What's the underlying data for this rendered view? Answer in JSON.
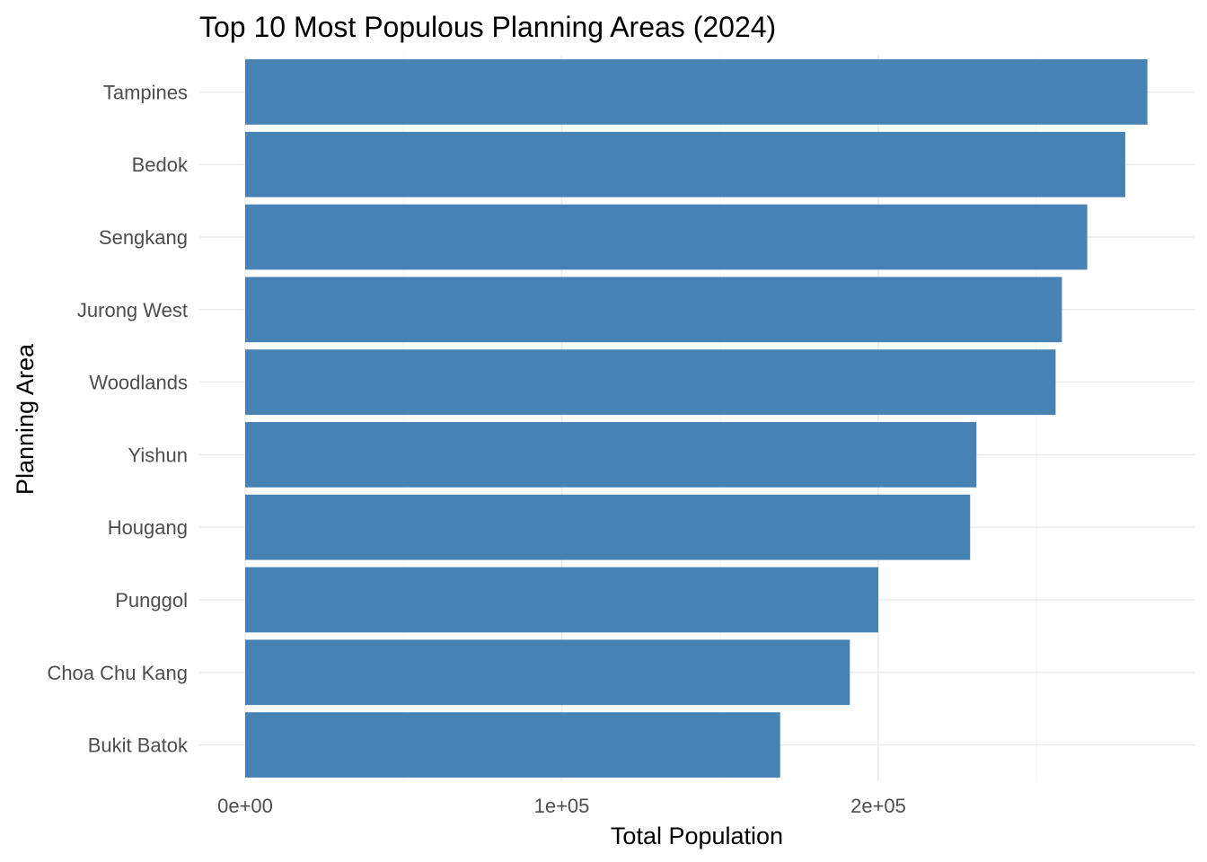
{
  "chart_data": {
    "type": "bar",
    "orientation": "horizontal",
    "title": "Top 10 Most Populous Planning Areas (2024)",
    "xlabel": "Total Population",
    "ylabel": "Planning Area",
    "categories": [
      "Tampines",
      "Bedok",
      "Sengkang",
      "Jurong West",
      "Woodlands",
      "Yishun",
      "Hougang",
      "Punggol",
      "Choa Chu Kang",
      "Bukit Batok"
    ],
    "values": [
      285000,
      278000,
      266000,
      258000,
      256000,
      231000,
      229000,
      200000,
      191000,
      169000
    ],
    "xlim": [
      0,
      300000
    ],
    "x_ticks": [
      0,
      100000,
      200000
    ],
    "x_tick_labels": [
      "0e+00",
      "1e+05",
      "2e+05"
    ],
    "grid": true,
    "bar_color": "#4682b4"
  }
}
